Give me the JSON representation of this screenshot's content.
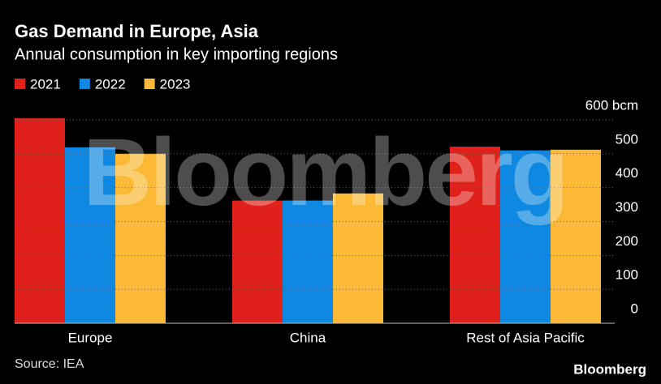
{
  "chart_data": {
    "type": "bar",
    "title": "Gas Demand in Europe, Asia",
    "subtitle": "Annual consumption in key importing regions",
    "categories": [
      "Europe",
      "China",
      "Rest of Asia Pacific"
    ],
    "series": [
      {
        "name": "2021",
        "color": "#e0201b",
        "values": [
          605,
          362,
          521
        ]
      },
      {
        "name": "2022",
        "color": "#0e88e0",
        "values": [
          519,
          362,
          510
        ]
      },
      {
        "name": "2023",
        "color": "#fbb935",
        "values": [
          500,
          383,
          512
        ]
      }
    ],
    "ylim": [
      0,
      600
    ],
    "yticks": [
      0,
      100,
      200,
      300,
      400,
      500,
      {
        "value": 600,
        "label": "600 bcm"
      }
    ],
    "grid": true,
    "source": "Source: IEA",
    "watermark": "Bloomberg",
    "logo": "Bloomberg"
  }
}
